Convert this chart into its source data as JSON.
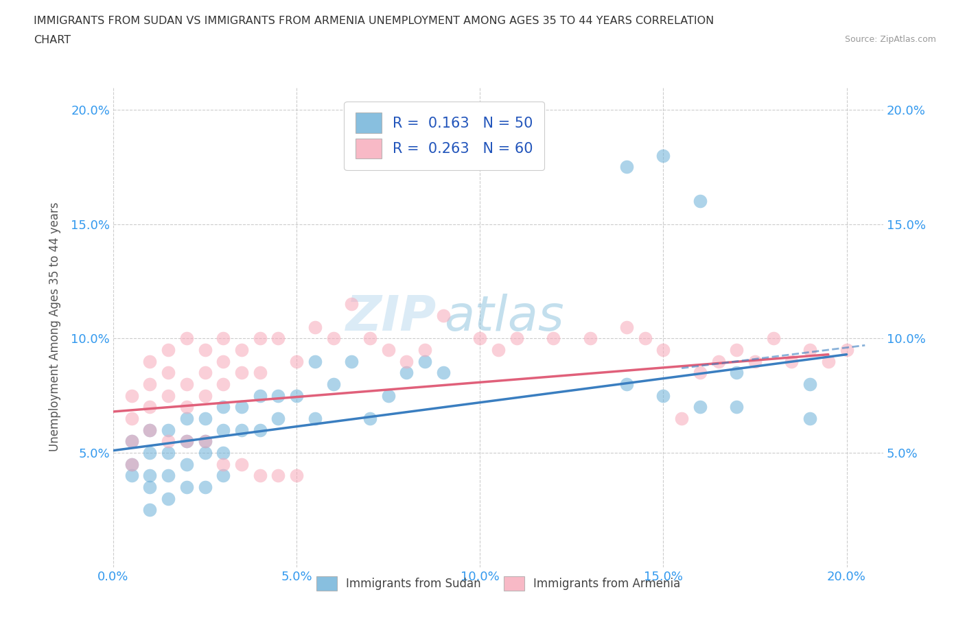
{
  "title_line1": "IMMIGRANTS FROM SUDAN VS IMMIGRANTS FROM ARMENIA UNEMPLOYMENT AMONG AGES 35 TO 44 YEARS CORRELATION",
  "title_line2": "CHART",
  "source_text": "Source: ZipAtlas.com",
  "ylabel": "Unemployment Among Ages 35 to 44 years",
  "xlim": [
    0.0,
    0.21
  ],
  "ylim": [
    0.0,
    0.21
  ],
  "xtick_labels": [
    "0.0%",
    "5.0%",
    "10.0%",
    "15.0%",
    "20.0%"
  ],
  "xtick_vals": [
    0.0,
    0.05,
    0.1,
    0.15,
    0.2
  ],
  "ytick_labels": [
    "5.0%",
    "10.0%",
    "15.0%",
    "20.0%"
  ],
  "ytick_vals": [
    0.05,
    0.1,
    0.15,
    0.2
  ],
  "legend_entry1": "R =  0.163   N = 50",
  "legend_entry2": "R =  0.263   N = 60",
  "sudan_color": "#6ab0d8",
  "armenia_color": "#f7a8b8",
  "sudan_line_color": "#3a7ec0",
  "armenia_line_color": "#e0607a",
  "watermark_zi": "ZIP",
  "watermark_atlas": "atlas",
  "sudan_label": "Immigrants from Sudan",
  "armenia_label": "Immigrants from Armenia",
  "sudan_scatter_x": [
    0.005,
    0.005,
    0.005,
    0.01,
    0.01,
    0.01,
    0.01,
    0.01,
    0.015,
    0.015,
    0.015,
    0.015,
    0.02,
    0.02,
    0.02,
    0.02,
    0.025,
    0.025,
    0.025,
    0.025,
    0.03,
    0.03,
    0.03,
    0.03,
    0.035,
    0.035,
    0.04,
    0.04,
    0.045,
    0.045,
    0.05,
    0.055,
    0.055,
    0.06,
    0.065,
    0.07,
    0.075,
    0.08,
    0.085,
    0.09,
    0.14,
    0.15,
    0.16,
    0.17,
    0.19,
    0.14,
    0.15,
    0.16,
    0.17,
    0.19
  ],
  "sudan_scatter_y": [
    0.055,
    0.045,
    0.04,
    0.06,
    0.05,
    0.04,
    0.035,
    0.025,
    0.06,
    0.05,
    0.04,
    0.03,
    0.065,
    0.055,
    0.045,
    0.035,
    0.065,
    0.055,
    0.05,
    0.035,
    0.07,
    0.06,
    0.05,
    0.04,
    0.07,
    0.06,
    0.075,
    0.06,
    0.075,
    0.065,
    0.075,
    0.09,
    0.065,
    0.08,
    0.09,
    0.065,
    0.075,
    0.085,
    0.09,
    0.085,
    0.175,
    0.18,
    0.16,
    0.085,
    0.08,
    0.08,
    0.075,
    0.07,
    0.07,
    0.065
  ],
  "armenia_scatter_x": [
    0.005,
    0.005,
    0.005,
    0.01,
    0.01,
    0.01,
    0.015,
    0.015,
    0.015,
    0.02,
    0.02,
    0.02,
    0.025,
    0.025,
    0.025,
    0.03,
    0.03,
    0.03,
    0.035,
    0.035,
    0.04,
    0.04,
    0.045,
    0.05,
    0.055,
    0.06,
    0.065,
    0.07,
    0.075,
    0.08,
    0.085,
    0.09,
    0.1,
    0.105,
    0.11,
    0.12,
    0.13,
    0.14,
    0.145,
    0.15,
    0.155,
    0.16,
    0.165,
    0.17,
    0.175,
    0.18,
    0.185,
    0.19,
    0.195,
    0.2,
    0.005,
    0.01,
    0.015,
    0.02,
    0.025,
    0.03,
    0.035,
    0.04,
    0.045,
    0.05
  ],
  "armenia_scatter_y": [
    0.065,
    0.075,
    0.055,
    0.07,
    0.08,
    0.09,
    0.075,
    0.085,
    0.095,
    0.07,
    0.08,
    0.1,
    0.075,
    0.085,
    0.095,
    0.08,
    0.09,
    0.1,
    0.085,
    0.095,
    0.085,
    0.1,
    0.1,
    0.09,
    0.105,
    0.1,
    0.115,
    0.1,
    0.095,
    0.09,
    0.095,
    0.11,
    0.1,
    0.095,
    0.1,
    0.1,
    0.1,
    0.105,
    0.1,
    0.095,
    0.065,
    0.085,
    0.09,
    0.095,
    0.09,
    0.1,
    0.09,
    0.095,
    0.09,
    0.095,
    0.045,
    0.06,
    0.055,
    0.055,
    0.055,
    0.045,
    0.045,
    0.04,
    0.04,
    0.04
  ],
  "sudan_trend_x": [
    0.0,
    0.2
  ],
  "sudan_trend_y": [
    0.051,
    0.093
  ],
  "armenia_trend_x": [
    0.0,
    0.195
  ],
  "armenia_trend_y": [
    0.068,
    0.093
  ]
}
